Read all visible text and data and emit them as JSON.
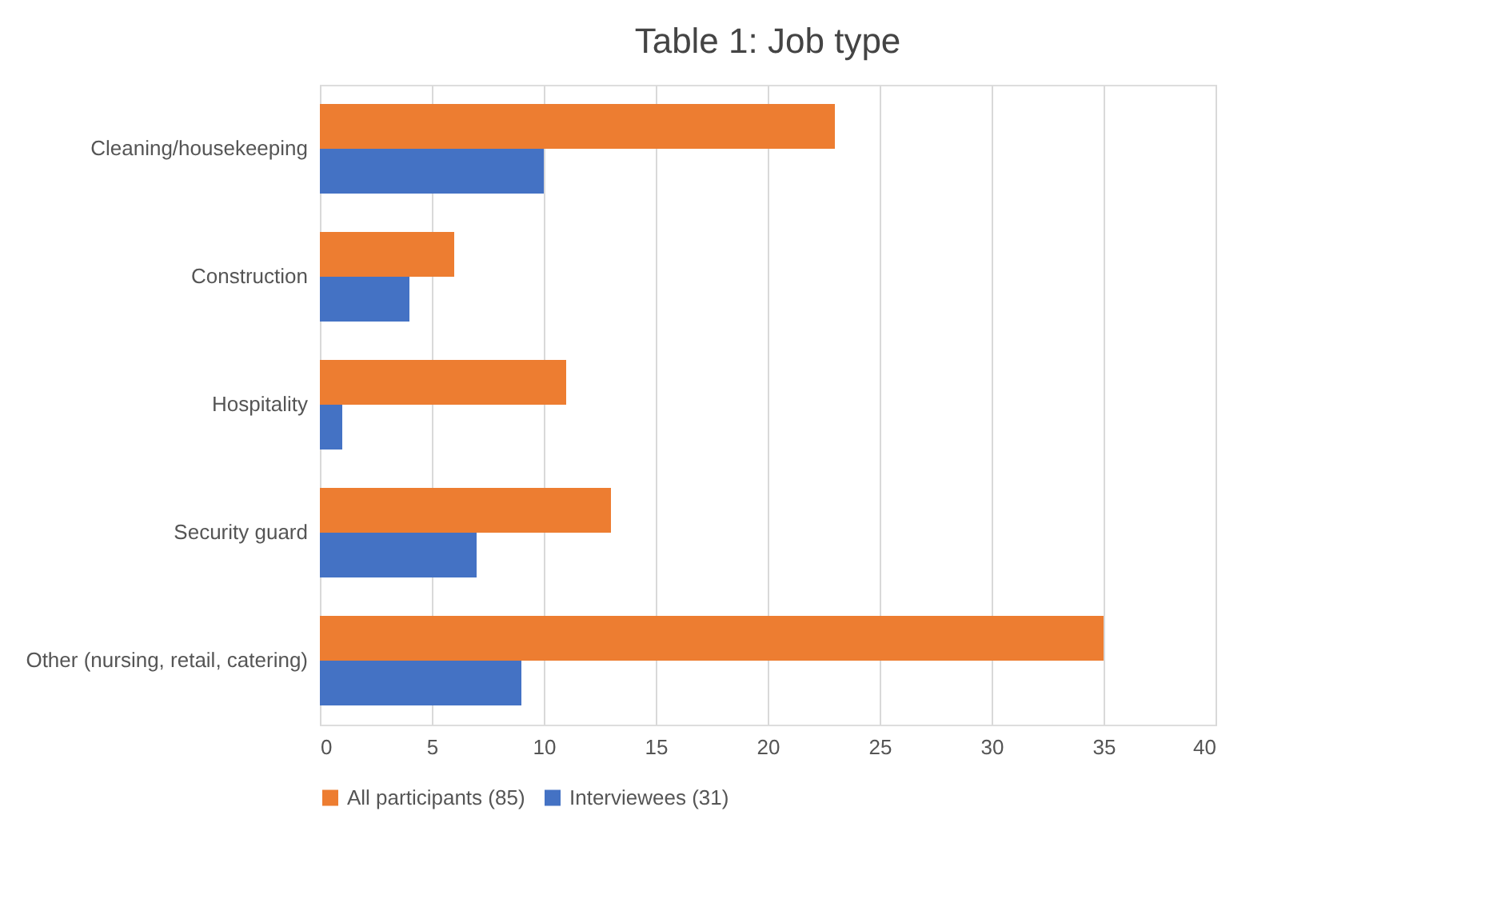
{
  "chart_data": {
    "type": "bar",
    "orientation": "horizontal",
    "title": "Table 1: Job type",
    "categories": [
      "Cleaning/housekeeping",
      "Construction",
      "Hospitality",
      "Security guard",
      "Other (nursing, retail, catering)"
    ],
    "series": [
      {
        "name": "All participants (85)",
        "color": "#ed7d31",
        "values": [
          23,
          6,
          11,
          13,
          35
        ]
      },
      {
        "name": "Interviewees (31)",
        "color": "#4472c4",
        "values": [
          10,
          4,
          1,
          7,
          9
        ]
      }
    ],
    "xlim": [
      0,
      40
    ],
    "xticks": [
      0,
      5,
      10,
      15,
      20,
      25,
      30,
      35,
      40
    ],
    "grid": "x",
    "legend": "bottom"
  }
}
